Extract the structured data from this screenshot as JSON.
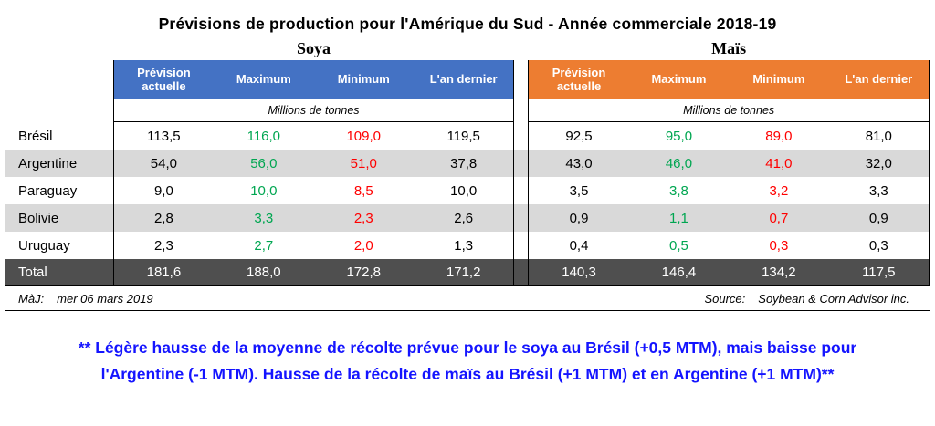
{
  "title": "Prévisions de production pour l'Amérique du Sud - Année commerciale 2018-19",
  "sections": {
    "soya": {
      "label": "Soya"
    },
    "mais": {
      "label": "Maïs"
    }
  },
  "headers": [
    "Prévision actuelle",
    "Maximum",
    "Minimum",
    "L'an dernier"
  ],
  "units": "Millions de tonnes",
  "rows": [
    {
      "country": "Brésil",
      "soya": [
        "113,5",
        "116,0",
        "109,0",
        "119,5"
      ],
      "mais": [
        "92,5",
        "95,0",
        "89,0",
        "81,0"
      ]
    },
    {
      "country": "Argentine",
      "soya": [
        "54,0",
        "56,0",
        "51,0",
        "37,8"
      ],
      "mais": [
        "43,0",
        "46,0",
        "41,0",
        "32,0"
      ]
    },
    {
      "country": "Paraguay",
      "soya": [
        "9,0",
        "10,0",
        "8,5",
        "10,0"
      ],
      "mais": [
        "3,5",
        "3,8",
        "3,2",
        "3,3"
      ]
    },
    {
      "country": "Bolivie",
      "soya": [
        "2,8",
        "3,3",
        "2,3",
        "2,6"
      ],
      "mais": [
        "0,9",
        "1,1",
        "0,7",
        "0,9"
      ]
    },
    {
      "country": "Uruguay",
      "soya": [
        "2,3",
        "2,7",
        "2,0",
        "1,3"
      ],
      "mais": [
        "0,4",
        "0,5",
        "0,3",
        "0,3"
      ]
    }
  ],
  "total": {
    "label": "Total",
    "soya": [
      "181,6",
      "188,0",
      "172,8",
      "171,2"
    ],
    "mais": [
      "140,3",
      "146,4",
      "134,2",
      "117,5"
    ]
  },
  "footer": {
    "maj_label": "MàJ:",
    "maj_value": "mer 06 mars 2019",
    "source_label": "Source:",
    "source_value": "Soybean & Corn Advisor inc."
  },
  "note": {
    "line1": "** Légère hausse de la moyenne de récolte prévue pour le soya au Brésil (+0,5 MTM), mais baisse pour",
    "line2": "l'Argentine (-1 MTM). Hausse de la récolte de maïs au Brésil (+1 MTM) et en Argentine (+1 MTM)**"
  },
  "colors": {
    "soya_header": "#4472C4",
    "mais_header": "#ED7D31",
    "max_value": "#00A651",
    "min_value": "#FF0000",
    "alt_row": "#D9D9D9",
    "total_row": "#4F4F4F",
    "note_text": "#1414FF"
  },
  "chart_data": [
    {
      "type": "table",
      "title": "Soya",
      "units": "Millions de tonnes",
      "columns": [
        "Prévision actuelle",
        "Maximum",
        "Minimum",
        "L'an dernier"
      ],
      "rows": [
        [
          "Brésil",
          113.5,
          116.0,
          109.0,
          119.5
        ],
        [
          "Argentine",
          54.0,
          56.0,
          51.0,
          37.8
        ],
        [
          "Paraguay",
          9.0,
          10.0,
          8.5,
          10.0
        ],
        [
          "Bolivie",
          2.8,
          3.3,
          2.3,
          2.6
        ],
        [
          "Uruguay",
          2.3,
          2.7,
          2.0,
          1.3
        ]
      ],
      "total": [
        "Total",
        181.6,
        188.0,
        172.8,
        171.2
      ]
    },
    {
      "type": "table",
      "title": "Maïs",
      "units": "Millions de tonnes",
      "columns": [
        "Prévision actuelle",
        "Maximum",
        "Minimum",
        "L'an dernier"
      ],
      "rows": [
        [
          "Brésil",
          92.5,
          95.0,
          89.0,
          81.0
        ],
        [
          "Argentine",
          43.0,
          46.0,
          41.0,
          32.0
        ],
        [
          "Paraguay",
          3.5,
          3.8,
          3.2,
          3.3
        ],
        [
          "Bolivie",
          0.9,
          1.1,
          0.7,
          0.9
        ],
        [
          "Uruguay",
          0.4,
          0.5,
          0.3,
          0.3
        ]
      ],
      "total": [
        "Total",
        140.3,
        146.4,
        134.2,
        117.5
      ]
    }
  ]
}
